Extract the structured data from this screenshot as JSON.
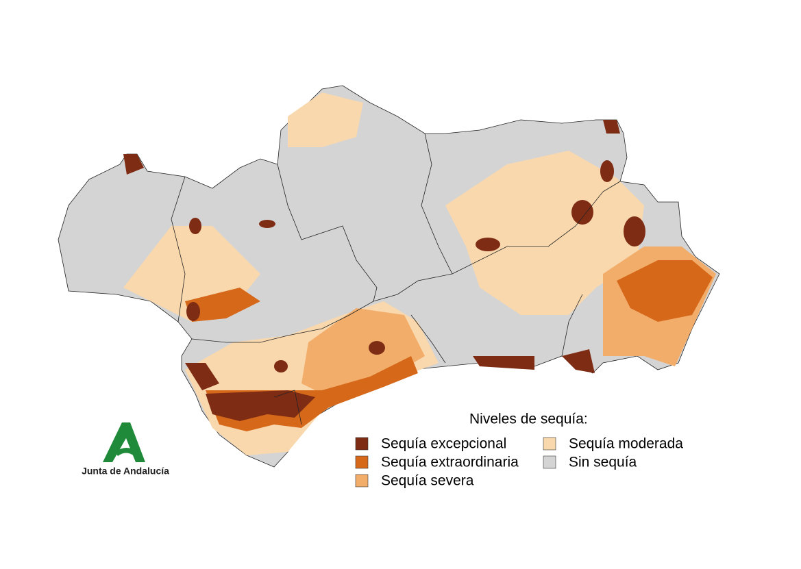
{
  "legend": {
    "title": "Niveles de sequía:",
    "items": [
      {
        "label": "Sequía excepcional",
        "color": "#7f2c14"
      },
      {
        "label": "Sequía extraordinaria",
        "color": "#d6681a"
      },
      {
        "label": "Sequía severa",
        "color": "#f2ad6b"
      },
      {
        "label": "Sequía moderada",
        "color": "#f9d8ad"
      },
      {
        "label": "Sin sequía",
        "color": "#d4d4d4"
      }
    ]
  },
  "logo": {
    "text": "Junta de Andalucía"
  }
}
